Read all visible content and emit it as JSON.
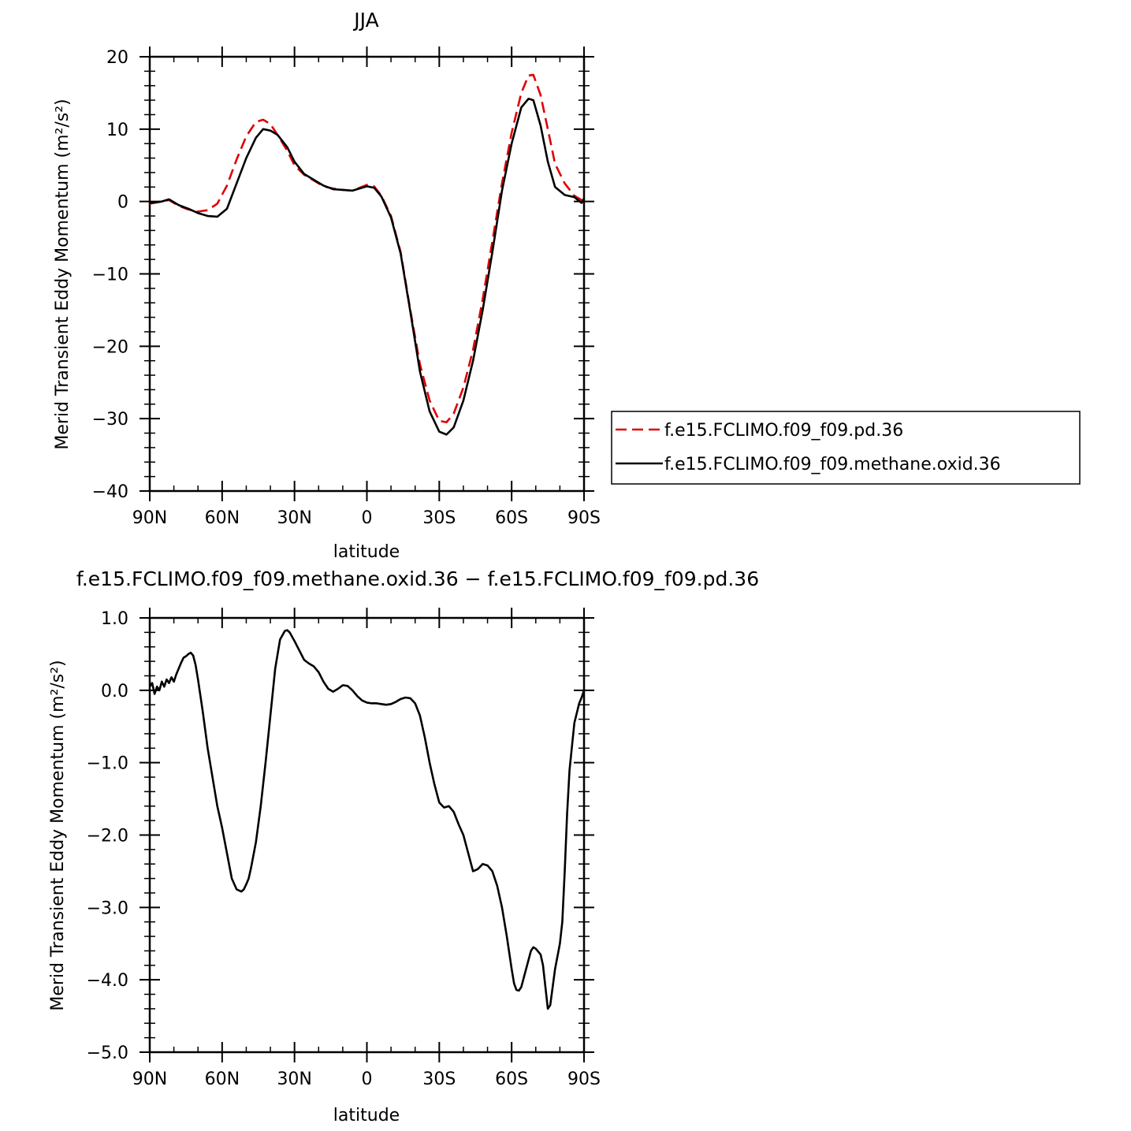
{
  "chart_data": [
    {
      "type": "line",
      "title": "JJA",
      "xlabel": "latitude",
      "ylabel": "Merid Transient Eddy Momentum (m²/s²)",
      "xlim": [
        90,
        -90
      ],
      "ylim": [
        -40,
        20
      ],
      "x_tick_values": [
        90,
        60,
        30,
        0,
        -30,
        -60,
        -90
      ],
      "x_tick_labels": [
        "90N",
        "60N",
        "30N",
        "0",
        "30S",
        "60S",
        "90S"
      ],
      "y_tick_values": [
        20,
        10,
        0,
        -10,
        -20,
        -30,
        -40
      ],
      "y_tick_labels": [
        "20",
        "10",
        "0",
        "−10",
        "−20",
        "−30",
        "−40"
      ],
      "grid": false,
      "legend_position": "right",
      "series": [
        {
          "name": "f.e15.FCLIMO.f09_f09.pd.36",
          "color": "#e00000",
          "dash": "dashed",
          "x": [
            90,
            85,
            82,
            78,
            74,
            70,
            66,
            62,
            58,
            54,
            50,
            46,
            43,
            40,
            37,
            33,
            30,
            26,
            22,
            18,
            14,
            10,
            6,
            3,
            0,
            -3,
            -6,
            -10,
            -14,
            -18,
            -22,
            -26,
            -30,
            -33,
            -36,
            -40,
            -44,
            -48,
            -52,
            -56,
            -60,
            -64,
            -67,
            -69,
            -72,
            -75,
            -78,
            -82,
            -86,
            -90
          ],
          "y": [
            -0.3,
            0.0,
            0.2,
            -0.6,
            -1.1,
            -1.4,
            -1.2,
            -0.3,
            2.2,
            5.8,
            9.0,
            11.0,
            11.3,
            10.7,
            9.2,
            7.0,
            5.0,
            3.7,
            2.9,
            2.1,
            1.8,
            1.6,
            1.5,
            1.9,
            2.3,
            2.1,
            0.8,
            -2.0,
            -7.0,
            -15.0,
            -22.5,
            -27.5,
            -30.3,
            -30.5,
            -29.3,
            -25.7,
            -20.5,
            -13.5,
            -5.5,
            2.5,
            9.5,
            15.0,
            17.4,
            17.5,
            14.7,
            10.0,
            5.2,
            2.5,
            0.8,
            0.0
          ]
        },
        {
          "name": "f.e15.FCLIMO.f09_f09.methane.oxid.36",
          "color": "#000000",
          "dash": "solid",
          "x": [
            90,
            85,
            82,
            78,
            74,
            70,
            66,
            62,
            58,
            54,
            50,
            46,
            43,
            40,
            37,
            33,
            30,
            26,
            22,
            18,
            14,
            10,
            6,
            3,
            0,
            -3,
            -6,
            -10,
            -14,
            -18,
            -22,
            -26,
            -30,
            -33,
            -36,
            -40,
            -44,
            -48,
            -52,
            -56,
            -60,
            -64,
            -67,
            -69,
            -72,
            -75,
            -78,
            -82,
            -86,
            -89,
            -90
          ],
          "y": [
            -0.2,
            0.0,
            0.3,
            -0.5,
            -1.0,
            -1.6,
            -2.0,
            -2.1,
            -1.0,
            2.5,
            6.0,
            8.8,
            10.0,
            9.8,
            9.2,
            7.5,
            5.5,
            3.8,
            3.0,
            2.2,
            1.7,
            1.6,
            1.5,
            1.8,
            2.1,
            1.9,
            0.7,
            -2.2,
            -7.2,
            -15.2,
            -23.5,
            -29.0,
            -31.8,
            -32.2,
            -31.2,
            -27.5,
            -22.0,
            -15.0,
            -7.0,
            1.5,
            8.0,
            13.0,
            14.2,
            14.0,
            10.5,
            5.5,
            2.0,
            0.9,
            0.6,
            -0.2,
            0.4
          ]
        }
      ]
    },
    {
      "type": "line",
      "title": "f.e15.FCLIMO.f09_f09.methane.oxid.36 − f.e15.FCLIMO.f09_f09.pd.36",
      "xlabel": "latitude",
      "ylabel": "Merid Transient Eddy Momentum (m²/s²)",
      "xlim": [
        90,
        -90
      ],
      "ylim": [
        -5,
        1
      ],
      "x_tick_values": [
        90,
        60,
        30,
        0,
        -30,
        -60,
        -90
      ],
      "x_tick_labels": [
        "90N",
        "60N",
        "30N",
        "0",
        "30S",
        "60S",
        "90S"
      ],
      "y_tick_values": [
        1,
        0,
        -1,
        -2,
        -3,
        -4,
        -5
      ],
      "y_tick_labels": [
        "1.0",
        "0.0",
        "−1.0",
        "−2.0",
        "−3.0",
        "−4.0",
        "−5.0"
      ],
      "grid": false,
      "series": [
        {
          "color": "#000000",
          "dash": "solid",
          "x": [
            90,
            89,
            88,
            87,
            86,
            85,
            84,
            83,
            82,
            81,
            80,
            79,
            78,
            77,
            76,
            75,
            74,
            73,
            72,
            71,
            70,
            68,
            66,
            64,
            62,
            60,
            58,
            56,
            54,
            52,
            51,
            50,
            49,
            48,
            46,
            44,
            42,
            40,
            38,
            36,
            34,
            33,
            32,
            31,
            30,
            28,
            26,
            24,
            22,
            20,
            18,
            16,
            14,
            12,
            10,
            8,
            6,
            4,
            2,
            0,
            -2,
            -4,
            -6,
            -8,
            -10,
            -12,
            -14,
            -16,
            -18,
            -20,
            -22,
            -24,
            -26,
            -28,
            -30,
            -32,
            -34,
            -36,
            -38,
            -40,
            -42,
            -44,
            -46,
            -48,
            -50,
            -52,
            -54,
            -56,
            -58,
            -60,
            -61,
            -62,
            -63,
            -64,
            -66,
            -68,
            -69,
            -70,
            -72,
            -73,
            -74,
            -75,
            -76,
            -78,
            -80,
            -81,
            -82,
            -83,
            -84,
            -86,
            -88,
            -89,
            -90
          ],
          "y": [
            0.05,
            0.1,
            -0.05,
            0.05,
            0.0,
            0.12,
            0.05,
            0.15,
            0.1,
            0.18,
            0.12,
            0.22,
            0.3,
            0.38,
            0.45,
            0.47,
            0.5,
            0.52,
            0.48,
            0.35,
            0.15,
            -0.3,
            -0.8,
            -1.2,
            -1.6,
            -1.9,
            -2.25,
            -2.6,
            -2.75,
            -2.78,
            -2.75,
            -2.68,
            -2.6,
            -2.45,
            -2.1,
            -1.6,
            -1.0,
            -0.35,
            0.3,
            0.7,
            0.82,
            0.83,
            0.8,
            0.74,
            0.68,
            0.55,
            0.42,
            0.37,
            0.33,
            0.25,
            0.12,
            0.02,
            -0.02,
            0.02,
            0.07,
            0.06,
            0.0,
            -0.08,
            -0.14,
            -0.17,
            -0.18,
            -0.18,
            -0.19,
            -0.2,
            -0.19,
            -0.16,
            -0.12,
            -0.1,
            -0.11,
            -0.18,
            -0.35,
            -0.65,
            -1.0,
            -1.3,
            -1.55,
            -1.62,
            -1.6,
            -1.68,
            -1.85,
            -2.0,
            -2.25,
            -2.5,
            -2.47,
            -2.4,
            -2.42,
            -2.5,
            -2.7,
            -3.0,
            -3.4,
            -3.85,
            -4.05,
            -4.14,
            -4.15,
            -4.1,
            -3.85,
            -3.6,
            -3.55,
            -3.57,
            -3.65,
            -3.8,
            -4.1,
            -4.4,
            -4.35,
            -3.85,
            -3.5,
            -3.2,
            -2.5,
            -1.7,
            -1.1,
            -0.45,
            -0.18,
            -0.1,
            0.0
          ]
        }
      ]
    }
  ]
}
